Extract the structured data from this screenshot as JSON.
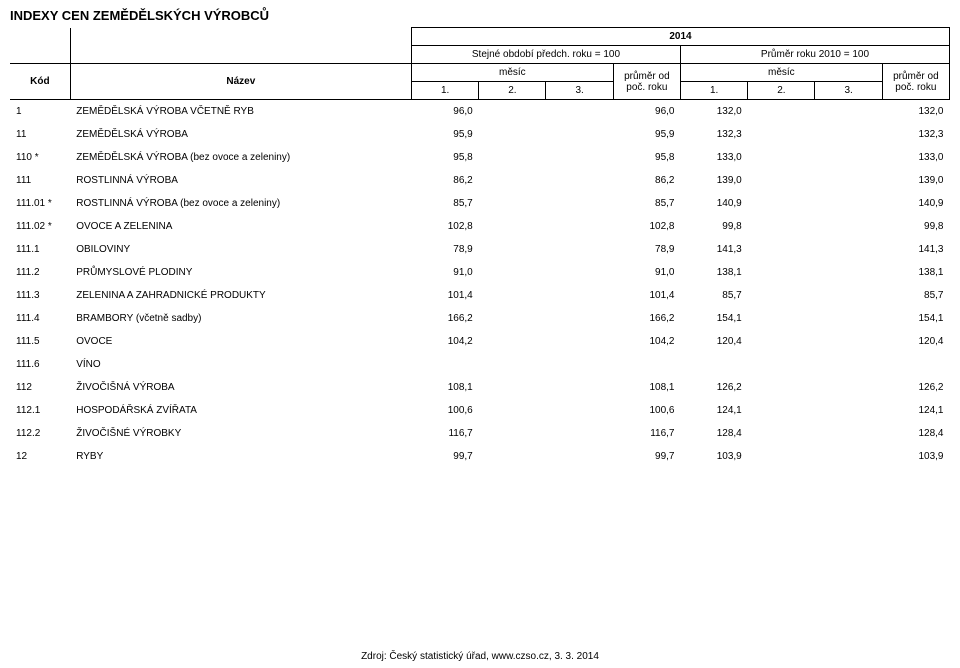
{
  "title": "INDEXY CEN ZEMĚDĚLSKÝCH VÝROBCŮ",
  "header": {
    "year": "2014",
    "kod": "Kód",
    "nazev": "Název",
    "group_a": "Stejné období předch. roku = 100",
    "group_b": "Průměr roku 2010 = 100",
    "mesic": "měsíc",
    "prumer": "průměr od poč. roku",
    "c1": "1.",
    "c2": "2.",
    "c3": "3."
  },
  "rows": [
    {
      "kod": "1",
      "nazev": "ZEMĚDĚLSKÁ VÝROBA VČETNĚ RYB",
      "a1": "96,0",
      "a2": "",
      "a3": "",
      "ap": "96,0",
      "b1": "132,0",
      "b2": "",
      "b3": "",
      "bp": "132,0"
    },
    {
      "kod": "11",
      "nazev": "ZEMĚDĚLSKÁ VÝROBA",
      "a1": "95,9",
      "a2": "",
      "a3": "",
      "ap": "95,9",
      "b1": "132,3",
      "b2": "",
      "b3": "",
      "bp": "132,3"
    },
    {
      "kod": "110 *",
      "nazev": "ZEMĚDĚLSKÁ VÝROBA (bez ovoce a zeleniny)",
      "a1": "95,8",
      "a2": "",
      "a3": "",
      "ap": "95,8",
      "b1": "133,0",
      "b2": "",
      "b3": "",
      "bp": "133,0"
    },
    {
      "kod": "111",
      "nazev": "ROSTLINNÁ VÝROBA",
      "a1": "86,2",
      "a2": "",
      "a3": "",
      "ap": "86,2",
      "b1": "139,0",
      "b2": "",
      "b3": "",
      "bp": "139,0"
    },
    {
      "kod": "111.01 *",
      "nazev": "ROSTLINNÁ VÝROBA (bez ovoce a zeleniny)",
      "a1": "85,7",
      "a2": "",
      "a3": "",
      "ap": "85,7",
      "b1": "140,9",
      "b2": "",
      "b3": "",
      "bp": "140,9"
    },
    {
      "kod": "111.02 *",
      "nazev": "OVOCE A ZELENINA",
      "a1": "102,8",
      "a2": "",
      "a3": "",
      "ap": "102,8",
      "b1": "99,8",
      "b2": "",
      "b3": "",
      "bp": "99,8"
    },
    {
      "kod": "111.1",
      "nazev": "OBILOVINY",
      "a1": "78,9",
      "a2": "",
      "a3": "",
      "ap": "78,9",
      "b1": "141,3",
      "b2": "",
      "b3": "",
      "bp": "141,3"
    },
    {
      "kod": "111.2",
      "nazev": "PRŮMYSLOVÉ PLODINY",
      "a1": "91,0",
      "a2": "",
      "a3": "",
      "ap": "91,0",
      "b1": "138,1",
      "b2": "",
      "b3": "",
      "bp": "138,1"
    },
    {
      "kod": "111.3",
      "nazev": "ZELENINA A ZAHRADNICKÉ PRODUKTY",
      "a1": "101,4",
      "a2": "",
      "a3": "",
      "ap": "101,4",
      "b1": "85,7",
      "b2": "",
      "b3": "",
      "bp": "85,7"
    },
    {
      "kod": "111.4",
      "nazev": "BRAMBORY (včetně sadby)",
      "a1": "166,2",
      "a2": "",
      "a3": "",
      "ap": "166,2",
      "b1": "154,1",
      "b2": "",
      "b3": "",
      "bp": "154,1"
    },
    {
      "kod": "111.5",
      "nazev": "OVOCE",
      "a1": "104,2",
      "a2": "",
      "a3": "",
      "ap": "104,2",
      "b1": "120,4",
      "b2": "",
      "b3": "",
      "bp": "120,4"
    },
    {
      "kod": "111.6",
      "nazev": "VÍNO",
      "a1": "",
      "a2": "",
      "a3": "",
      "ap": "",
      "b1": "",
      "b2": "",
      "b3": "",
      "bp": ""
    },
    {
      "kod": "112",
      "nazev": "ŽIVOČIŠNÁ VÝROBA",
      "a1": "108,1",
      "a2": "",
      "a3": "",
      "ap": "108,1",
      "b1": "126,2",
      "b2": "",
      "b3": "",
      "bp": "126,2"
    },
    {
      "kod": "112.1",
      "nazev": "HOSPODÁŘSKÁ ZVÍŘATA",
      "a1": "100,6",
      "a2": "",
      "a3": "",
      "ap": "100,6",
      "b1": "124,1",
      "b2": "",
      "b3": "",
      "bp": "124,1"
    },
    {
      "kod": "112.2",
      "nazev": "ŽIVOČIŠNÉ VÝROBKY",
      "a1": "116,7",
      "a2": "",
      "a3": "",
      "ap": "116,7",
      "b1": "128,4",
      "b2": "",
      "b3": "",
      "bp": "128,4"
    },
    {
      "kod": "12",
      "nazev": "RYBY",
      "a1": "99,7",
      "a2": "",
      "a3": "",
      "ap": "99,7",
      "b1": "103,9",
      "b2": "",
      "b3": "",
      "bp": "103,9"
    }
  ],
  "footer": "Zdroj: Český statistický úřad, www.czso.cz, 3. 3. 2014",
  "styling": {
    "title_fontsize": 13,
    "cell_fontsize": 10,
    "text_color": "#000000",
    "background_color": "#ffffff",
    "border_color": "#000000"
  }
}
